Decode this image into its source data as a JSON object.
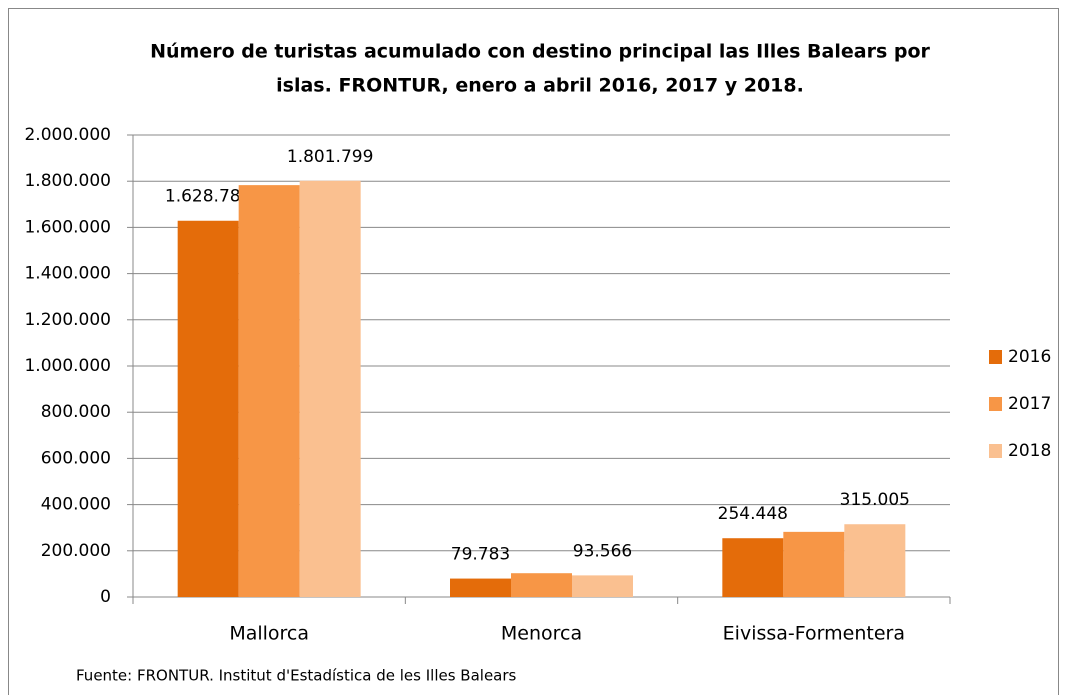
{
  "chart_data": {
    "type": "bar",
    "title": [
      "Número de turistas acumulado con destino principal las Illes Balears por",
      "islas. FRONTUR, enero a abril 2016, 2017 y 2018."
    ],
    "source": "Fuente: FRONTUR. Institut d'Estadística de les Illes Balears",
    "categories": [
      "Mallorca",
      "Menorca",
      "Eivissa-Formentera"
    ],
    "series": [
      {
        "name": "2016",
        "color": "#e46c0a",
        "values": [
          1628789,
          79783,
          254448
        ],
        "value_labels": [
          "1.628.789",
          "79.783",
          "254.448"
        ]
      },
      {
        "name": "2017",
        "color": "#f79646",
        "values": [
          1783000,
          103000,
          282000
        ]
      },
      {
        "name": "2018",
        "color": "#fac090",
        "values": [
          1801799,
          93566,
          315005
        ],
        "value_labels": [
          "1.801.799",
          "93.566",
          "315.005"
        ]
      }
    ],
    "ylim": [
      0,
      2000000
    ],
    "yticks": [
      0,
      {
        "value": 200000,
        "label": "200.000"
      },
      {
        "value": 400000,
        "label": "400.000"
      },
      {
        "value": 600000,
        "label": "600.000"
      },
      {
        "value": 800000,
        "label": "800.000"
      },
      {
        "value": 1000000,
        "label": "1.000.000"
      },
      {
        "value": 1200000,
        "label": "1.200.000"
      },
      {
        "value": 1400000,
        "label": "1.400.000"
      },
      {
        "value": 1600000,
        "label": "1.600.000"
      },
      {
        "value": 1800000,
        "label": "1.800.000"
      },
      {
        "value": 2000000,
        "label": "2.000.000"
      }
    ],
    "grid": true,
    "legend": "right"
  }
}
